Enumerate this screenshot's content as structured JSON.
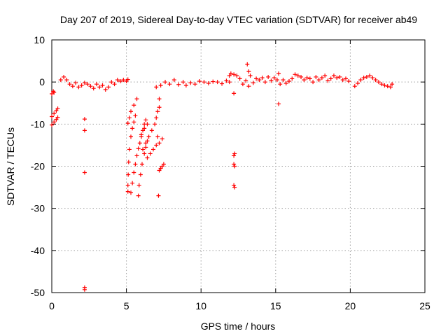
{
  "chart_data": {
    "type": "scatter",
    "title": "Day 207 of 2019, Sidereal Day-to-day VTEC variation (SDTVAR) for receiver ab49",
    "xlabel": "GPS time / hours",
    "ylabel": "SDTVAR / TECUs",
    "xlim": [
      0,
      25
    ],
    "ylim": [
      -50,
      10
    ],
    "xticks": [
      0,
      5,
      10,
      15,
      20,
      25
    ],
    "yticks": [
      10,
      0,
      -10,
      -20,
      -30,
      -40,
      -50
    ],
    "grid": true,
    "marker": "+",
    "color": "#ff0000",
    "series": [
      {
        "name": "SDTVAR",
        "points": [
          [
            0.0,
            -2.8
          ],
          [
            0.15,
            -2.5
          ],
          [
            0.1,
            -2.2
          ],
          [
            0.0,
            -8.2
          ],
          [
            0.15,
            -7.5
          ],
          [
            0.3,
            -6.8
          ],
          [
            0.4,
            -6.3
          ],
          [
            0.0,
            -10.2
          ],
          [
            0.15,
            -9.5
          ],
          [
            0.3,
            -8.9
          ],
          [
            0.4,
            -8.4
          ],
          [
            0.6,
            0.5
          ],
          [
            0.8,
            1.2
          ],
          [
            1.0,
            0.5
          ],
          [
            1.2,
            -0.5
          ],
          [
            1.4,
            -1.0
          ],
          [
            1.6,
            -0.2
          ],
          [
            1.8,
            -1.2
          ],
          [
            2.0,
            -0.8
          ],
          [
            2.2,
            -0.2
          ],
          [
            2.4,
            -0.5
          ],
          [
            2.6,
            -1.0
          ],
          [
            2.8,
            -1.5
          ],
          [
            3.0,
            -0.5
          ],
          [
            3.2,
            -1.2
          ],
          [
            3.4,
            -0.8
          ],
          [
            3.6,
            -1.8
          ],
          [
            3.8,
            -1.2
          ],
          [
            4.0,
            0.0
          ],
          [
            4.2,
            -0.5
          ],
          [
            4.4,
            0.5
          ],
          [
            4.6,
            0.2
          ],
          [
            4.8,
            0.5
          ],
          [
            5.0,
            0.2
          ],
          [
            5.1,
            0.6
          ],
          [
            2.2,
            -8.8
          ],
          [
            2.2,
            -11.5
          ],
          [
            2.2,
            -21.5
          ],
          [
            2.2,
            -48.8
          ],
          [
            2.2,
            -49.3
          ],
          [
            5.1,
            -26.0
          ],
          [
            5.1,
            -24.5
          ],
          [
            5.12,
            -22.0
          ],
          [
            5.15,
            -19.0
          ],
          [
            5.2,
            -16.0
          ],
          [
            5.3,
            -13.0
          ],
          [
            5.4,
            -11.0
          ],
          [
            5.5,
            -9.5
          ],
          [
            5.6,
            -8.0
          ],
          [
            5.1,
            -9.8
          ],
          [
            5.2,
            -8.5
          ],
          [
            5.3,
            -7.0
          ],
          [
            5.5,
            -5.5
          ],
          [
            5.7,
            -4.0
          ],
          [
            5.3,
            -26.3
          ],
          [
            5.4,
            -24.0
          ],
          [
            5.5,
            -21.5
          ],
          [
            5.6,
            -19.5
          ],
          [
            5.7,
            -17.5
          ],
          [
            5.8,
            -15.8
          ],
          [
            5.9,
            -14.5
          ],
          [
            6.0,
            -13.0
          ],
          [
            6.1,
            -11.5
          ],
          [
            6.2,
            -10.0
          ],
          [
            6.3,
            -9.0
          ],
          [
            5.8,
            -27.0
          ],
          [
            5.85,
            -24.5
          ],
          [
            5.95,
            -22.0
          ],
          [
            6.05,
            -19.5
          ],
          [
            6.2,
            -17.0
          ],
          [
            6.3,
            -15.5
          ],
          [
            6.4,
            -14.0
          ],
          [
            6.1,
            -16.0
          ],
          [
            6.3,
            -14.5
          ],
          [
            6.5,
            -13.0
          ],
          [
            6.7,
            -11.5
          ],
          [
            6.9,
            -10.0
          ],
          [
            7.0,
            -8.5
          ],
          [
            7.1,
            -7.0
          ],
          [
            7.2,
            -6.0
          ],
          [
            6.0,
            -12.5
          ],
          [
            6.2,
            -11.0
          ],
          [
            6.4,
            -10.0
          ],
          [
            6.4,
            -18.0
          ],
          [
            6.6,
            -17.0
          ],
          [
            6.8,
            -16.0
          ],
          [
            7.0,
            -15.0
          ],
          [
            7.2,
            -14.5
          ],
          [
            7.4,
            -13.5
          ],
          [
            7.2,
            -21.0
          ],
          [
            7.3,
            -20.5
          ],
          [
            7.4,
            -20.0
          ],
          [
            7.5,
            -19.5
          ],
          [
            7.1,
            -13.0
          ],
          [
            7.15,
            -27.0
          ],
          [
            7.2,
            -4.0
          ],
          [
            7.0,
            -1.2
          ],
          [
            7.3,
            -0.8
          ],
          [
            7.6,
            0.0
          ],
          [
            7.9,
            -0.5
          ],
          [
            8.2,
            0.5
          ],
          [
            8.5,
            -0.6
          ],
          [
            8.8,
            0.0
          ],
          [
            9.0,
            -0.8
          ],
          [
            9.3,
            -0.2
          ],
          [
            9.6,
            -0.5
          ],
          [
            9.9,
            0.2
          ],
          [
            10.2,
            0.0
          ],
          [
            10.5,
            -0.3
          ],
          [
            10.8,
            0.1
          ],
          [
            11.1,
            0.0
          ],
          [
            11.4,
            -0.4
          ],
          [
            11.7,
            0.3
          ],
          [
            11.9,
            0.0
          ],
          [
            11.9,
            1.5
          ],
          [
            12.0,
            2.0
          ],
          [
            12.2,
            1.8
          ],
          [
            12.4,
            1.5
          ],
          [
            12.6,
            0.8
          ],
          [
            12.2,
            -2.7
          ],
          [
            12.25,
            -17.0
          ],
          [
            12.2,
            -17.5
          ],
          [
            12.2,
            -19.5
          ],
          [
            12.25,
            -20.0
          ],
          [
            12.2,
            -24.5
          ],
          [
            12.25,
            -25.0
          ],
          [
            12.8,
            -0.5
          ],
          [
            13.0,
            0.3
          ],
          [
            13.2,
            -1.0
          ],
          [
            13.1,
            4.2
          ],
          [
            13.2,
            2.5
          ],
          [
            13.3,
            1.5
          ],
          [
            13.5,
            -0.2
          ],
          [
            13.7,
            0.8
          ],
          [
            13.9,
            0.5
          ],
          [
            14.1,
            1.0
          ],
          [
            14.3,
            0.0
          ],
          [
            14.5,
            1.2
          ],
          [
            14.7,
            0.3
          ],
          [
            14.9,
            1.0
          ],
          [
            15.1,
            0.5
          ],
          [
            15.2,
            2.0
          ],
          [
            15.2,
            -5.2
          ],
          [
            15.3,
            -0.5
          ],
          [
            15.5,
            0.5
          ],
          [
            15.7,
            -0.3
          ],
          [
            15.9,
            0.2
          ],
          [
            16.1,
            0.8
          ],
          [
            16.3,
            1.8
          ],
          [
            16.5,
            1.5
          ],
          [
            16.7,
            1.2
          ],
          [
            16.9,
            0.5
          ],
          [
            17.1,
            1.0
          ],
          [
            17.3,
            0.8
          ],
          [
            17.5,
            0.0
          ],
          [
            17.7,
            1.2
          ],
          [
            17.9,
            0.5
          ],
          [
            18.1,
            1.0
          ],
          [
            18.3,
            1.5
          ],
          [
            18.5,
            0.3
          ],
          [
            18.7,
            0.8
          ],
          [
            18.9,
            1.5
          ],
          [
            19.1,
            1.0
          ],
          [
            19.3,
            1.2
          ],
          [
            19.5,
            0.5
          ],
          [
            19.7,
            0.8
          ],
          [
            19.9,
            0.2
          ],
          [
            20.3,
            -1.0
          ],
          [
            20.5,
            -0.3
          ],
          [
            20.7,
            0.5
          ],
          [
            20.9,
            1.0
          ],
          [
            21.1,
            1.2
          ],
          [
            21.3,
            1.5
          ],
          [
            21.5,
            1.0
          ],
          [
            21.7,
            0.5
          ],
          [
            21.9,
            0.0
          ],
          [
            22.1,
            -0.5
          ],
          [
            22.3,
            -0.8
          ],
          [
            22.5,
            -1.0
          ],
          [
            22.7,
            -1.2
          ],
          [
            22.8,
            -0.5
          ]
        ]
      }
    ]
  }
}
